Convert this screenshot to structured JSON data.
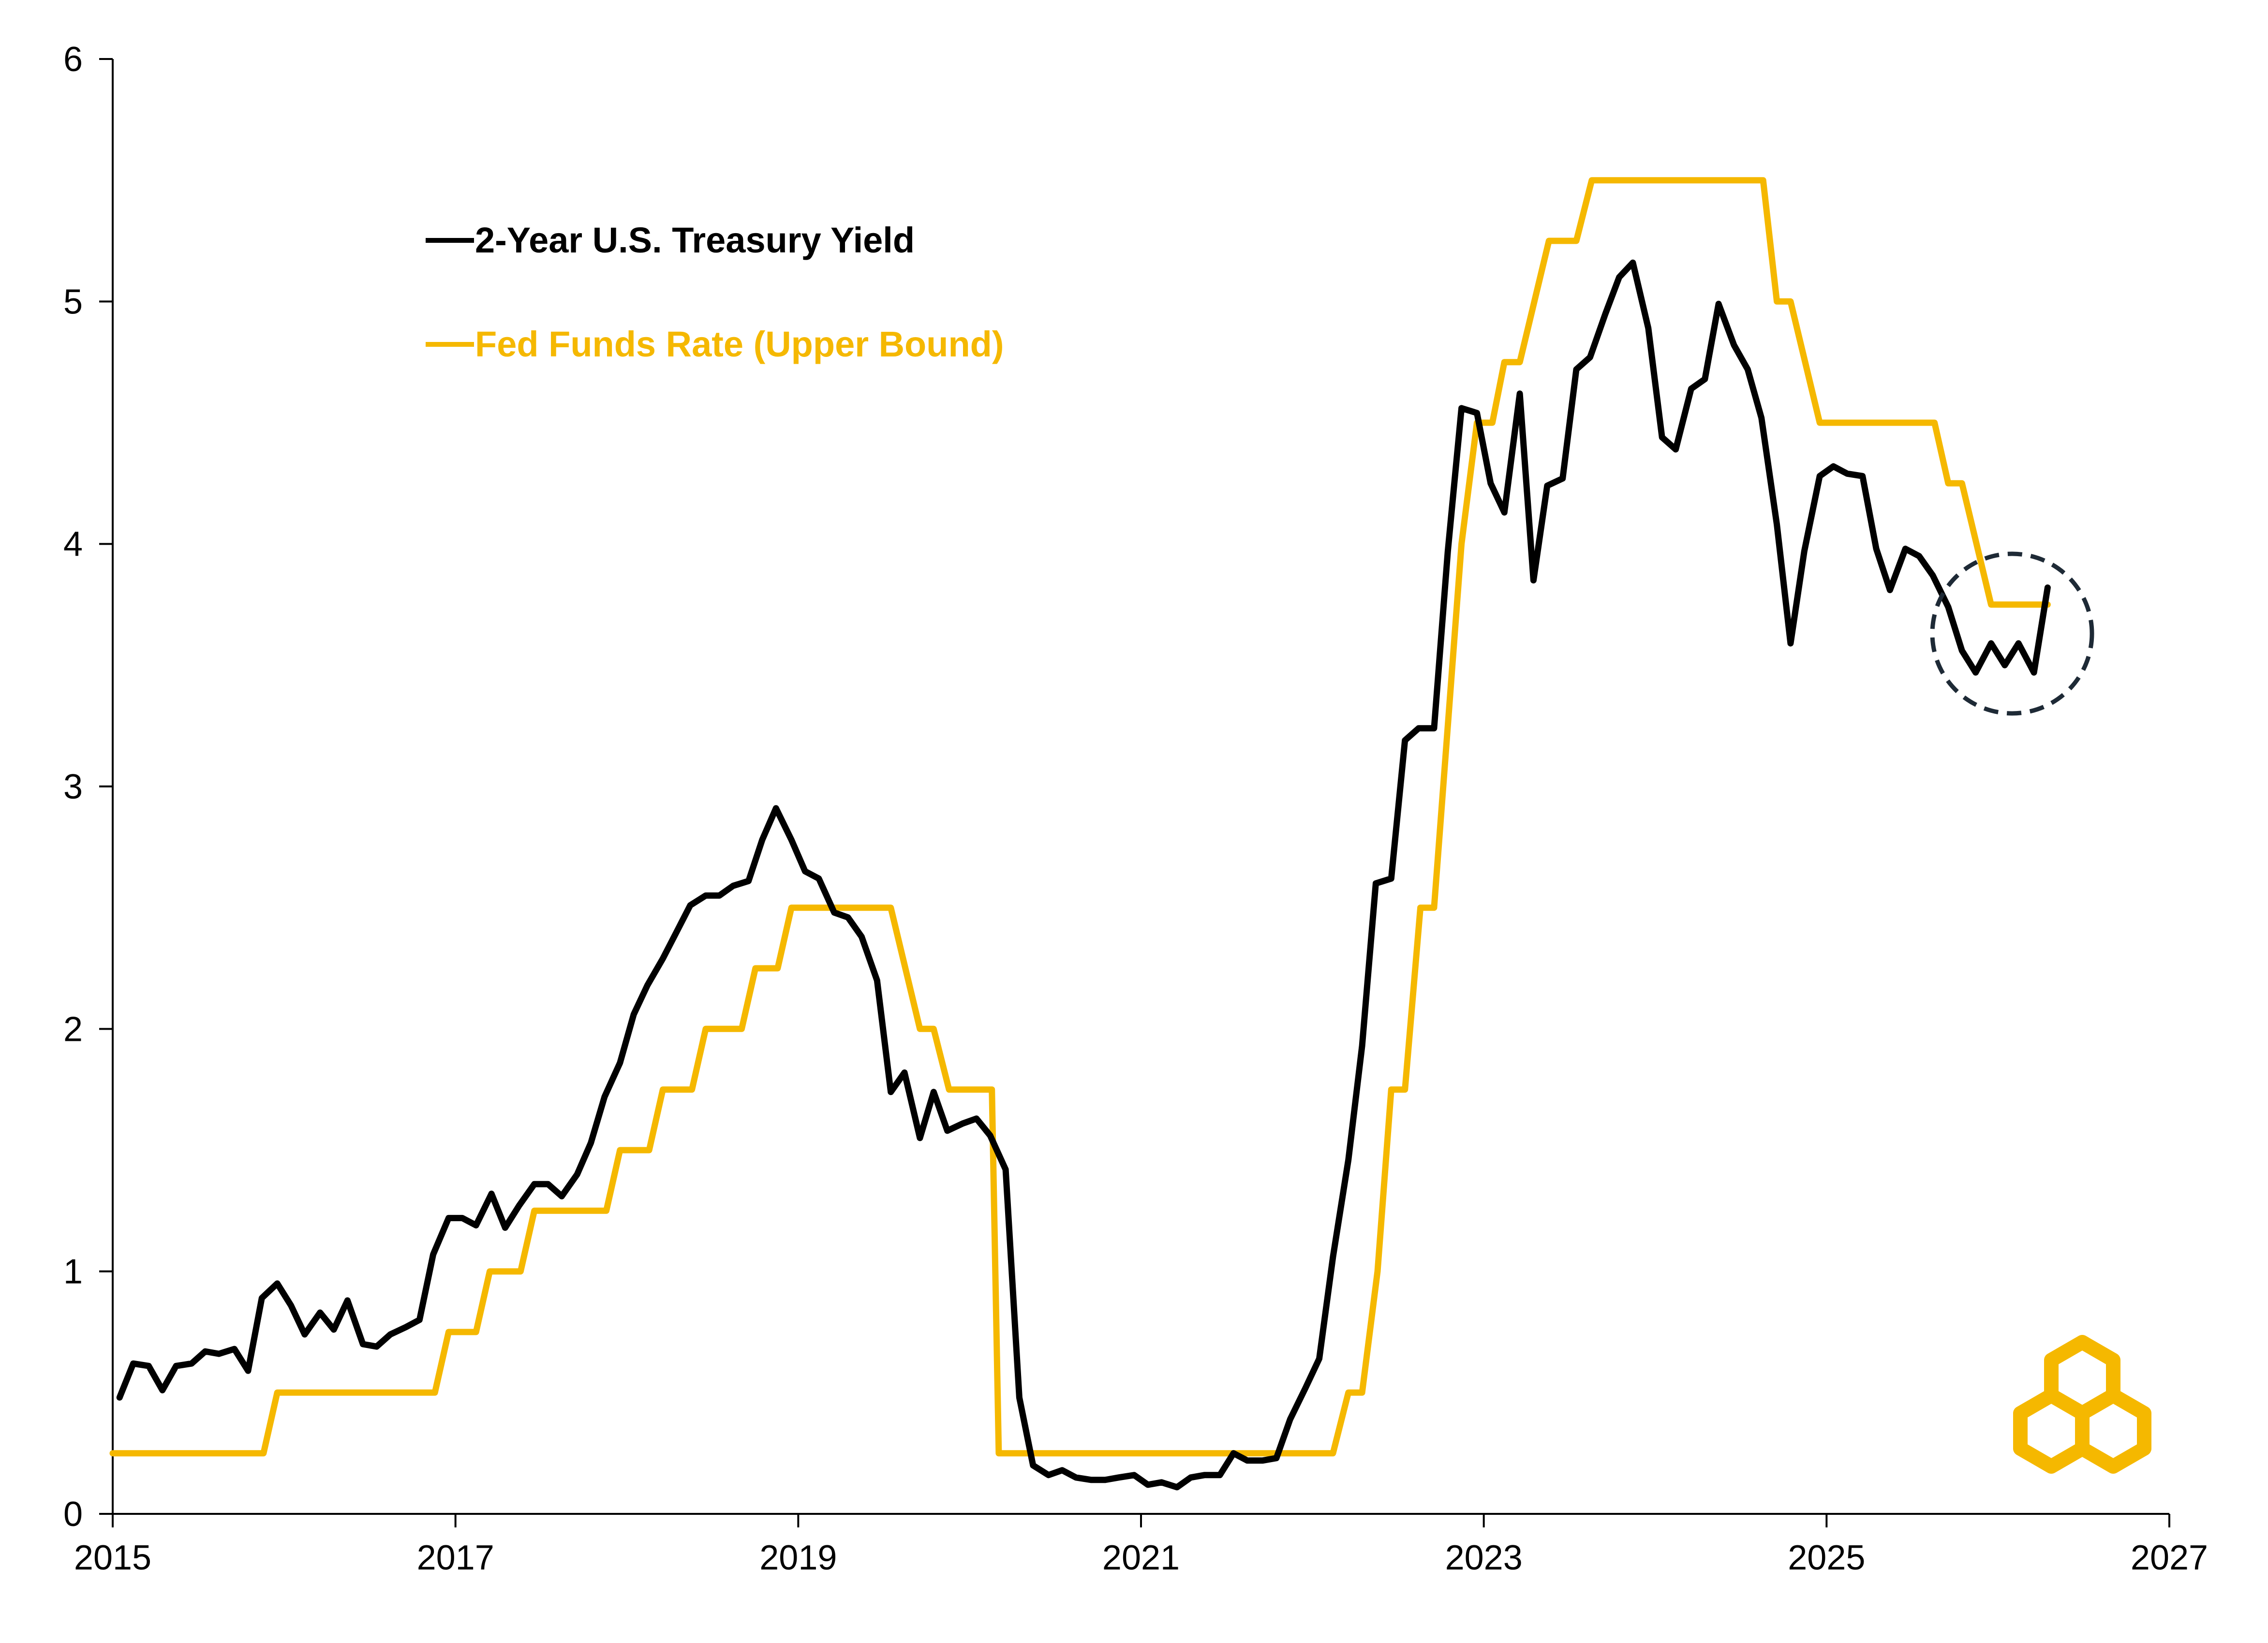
{
  "colors": {
    "treasury": "#000000",
    "fed": "#F5B800",
    "axis": "#000000",
    "highlight_circle": "#1E2A36",
    "logo": "#F5B800"
  },
  "legend": {
    "treasury_label": "2-Year U.S. Treasury Yield",
    "fed_label": "Fed Funds Rate (Upper Bound)"
  },
  "logo": {
    "icon": "interlocking-hexagons-logo-icon"
  },
  "chart_data": {
    "type": "line",
    "title": "",
    "xlabel": "",
    "ylabel": "",
    "xlim": [
      2015,
      2027
    ],
    "ylim": [
      0,
      6
    ],
    "x_ticks": [
      2015,
      2017,
      2019,
      2021,
      2023,
      2025,
      2027
    ],
    "y_ticks": [
      0,
      1,
      2,
      3,
      4,
      5,
      6
    ],
    "x_tick_labels": [
      "2015",
      "2017",
      "2019",
      "2021",
      "2023",
      "2025",
      "2027"
    ],
    "y_tick_labels": [
      "0",
      "1",
      "2",
      "3",
      "4",
      "5",
      "6"
    ],
    "grid": false,
    "legend_position": "top-left",
    "annotations": [
      {
        "type": "dashed-circle",
        "center": [
          2025.05,
          3.63
        ],
        "note": "highlights latest readings"
      }
    ],
    "series": [
      {
        "name": "2-Year U.S. Treasury Yield",
        "color": "#000000",
        "points": [
          [
            2015.04,
            0.48
          ],
          [
            2015.12,
            0.62
          ],
          [
            2015.21,
            0.61
          ],
          [
            2015.29,
            0.51
          ],
          [
            2015.37,
            0.61
          ],
          [
            2015.46,
            0.62
          ],
          [
            2015.54,
            0.67
          ],
          [
            2015.62,
            0.66
          ],
          [
            2015.71,
            0.68
          ],
          [
            2015.79,
            0.59
          ],
          [
            2015.87,
            0.89
          ],
          [
            2015.96,
            0.95
          ],
          [
            2016.04,
            0.86
          ],
          [
            2016.12,
            0.74
          ],
          [
            2016.21,
            0.83
          ],
          [
            2016.29,
            0.76
          ],
          [
            2016.37,
            0.88
          ],
          [
            2016.46,
            0.7
          ],
          [
            2016.54,
            0.69
          ],
          [
            2016.62,
            0.74
          ],
          [
            2016.71,
            0.77
          ],
          [
            2016.79,
            0.8
          ],
          [
            2016.87,
            1.07
          ],
          [
            2016.96,
            1.22
          ],
          [
            2017.04,
            1.22
          ],
          [
            2017.12,
            1.19
          ],
          [
            2017.21,
            1.32
          ],
          [
            2017.29,
            1.18
          ],
          [
            2017.37,
            1.27
          ],
          [
            2017.46,
            1.36
          ],
          [
            2017.54,
            1.36
          ],
          [
            2017.62,
            1.31
          ],
          [
            2017.71,
            1.4
          ],
          [
            2017.79,
            1.53
          ],
          [
            2017.87,
            1.72
          ],
          [
            2017.96,
            1.86
          ],
          [
            2018.04,
            2.06
          ],
          [
            2018.12,
            2.18
          ],
          [
            2018.21,
            2.29
          ],
          [
            2018.29,
            2.4
          ],
          [
            2018.37,
            2.51
          ],
          [
            2018.46,
            2.55
          ],
          [
            2018.54,
            2.55
          ],
          [
            2018.62,
            2.59
          ],
          [
            2018.71,
            2.61
          ],
          [
            2018.79,
            2.78
          ],
          [
            2018.87,
            2.91
          ],
          [
            2018.96,
            2.78
          ],
          [
            2019.04,
            2.65
          ],
          [
            2019.12,
            2.62
          ],
          [
            2019.21,
            2.48
          ],
          [
            2019.29,
            2.46
          ],
          [
            2019.37,
            2.38
          ],
          [
            2019.46,
            2.2
          ],
          [
            2019.54,
            1.74
          ],
          [
            2019.62,
            1.82
          ],
          [
            2019.71,
            1.55
          ],
          [
            2019.79,
            1.74
          ],
          [
            2019.87,
            1.58
          ],
          [
            2019.96,
            1.61
          ],
          [
            2020.04,
            1.63
          ],
          [
            2020.12,
            1.56
          ],
          [
            2020.21,
            1.42
          ],
          [
            2020.29,
            0.48
          ],
          [
            2020.37,
            0.2
          ],
          [
            2020.46,
            0.16
          ],
          [
            2020.54,
            0.18
          ],
          [
            2020.62,
            0.15
          ],
          [
            2020.71,
            0.14
          ],
          [
            2020.79,
            0.14
          ],
          [
            2020.87,
            0.15
          ],
          [
            2020.96,
            0.16
          ],
          [
            2021.04,
            0.12
          ],
          [
            2021.12,
            0.13
          ],
          [
            2021.21,
            0.11
          ],
          [
            2021.29,
            0.15
          ],
          [
            2021.37,
            0.16
          ],
          [
            2021.46,
            0.16
          ],
          [
            2021.54,
            0.25
          ],
          [
            2021.62,
            0.22
          ],
          [
            2021.71,
            0.22
          ],
          [
            2021.79,
            0.23
          ],
          [
            2021.87,
            0.39
          ],
          [
            2021.96,
            0.52
          ],
          [
            2022.04,
            0.64
          ],
          [
            2022.12,
            1.06
          ],
          [
            2022.21,
            1.46
          ],
          [
            2022.29,
            1.93
          ],
          [
            2022.37,
            2.6
          ],
          [
            2022.46,
            2.62
          ],
          [
            2022.54,
            3.19
          ],
          [
            2022.62,
            3.24
          ],
          [
            2022.71,
            3.24
          ],
          [
            2022.79,
            3.97
          ],
          [
            2022.87,
            4.56
          ],
          [
            2022.96,
            4.54
          ],
          [
            2023.04,
            4.25
          ],
          [
            2023.12,
            4.13
          ],
          [
            2023.21,
            4.62
          ],
          [
            2023.29,
            3.85
          ],
          [
            2023.37,
            4.24
          ],
          [
            2023.46,
            4.27
          ],
          [
            2023.54,
            4.72
          ],
          [
            2023.62,
            4.77
          ],
          [
            2023.71,
            4.95
          ],
          [
            2023.79,
            5.1
          ],
          [
            2023.87,
            5.16
          ],
          [
            2023.96,
            4.89
          ],
          [
            2024.04,
            4.44
          ],
          [
            2024.12,
            4.39
          ],
          [
            2024.21,
            4.64
          ],
          [
            2024.29,
            4.68
          ],
          [
            2024.37,
            4.99
          ],
          [
            2024.46,
            4.82
          ],
          [
            2024.54,
            4.72
          ],
          [
            2024.62,
            4.52
          ],
          [
            2024.71,
            4.08
          ],
          [
            2024.79,
            3.59
          ],
          [
            2024.87,
            3.97
          ],
          [
            2024.96,
            4.28
          ],
          [
            2025.04,
            4.32
          ],
          [
            2025.12,
            4.29
          ],
          [
            2025.21,
            4.28
          ],
          [
            2025.29,
            3.98
          ],
          [
            2025.37,
            3.81
          ],
          [
            2025.46,
            3.98
          ],
          [
            2025.54,
            3.95
          ],
          [
            2025.62,
            3.87
          ],
          [
            2025.71,
            3.74
          ],
          [
            2025.79,
            3.56
          ],
          [
            2025.87,
            3.47
          ],
          [
            2025.96,
            3.59
          ],
          [
            2026.04,
            3.5
          ],
          [
            2026.12,
            3.59
          ],
          [
            2026.21,
            3.47
          ],
          [
            2026.29,
            3.82
          ]
        ]
      },
      {
        "name": "Fed Funds Rate (Upper Bound)",
        "color": "#F5B800",
        "points": [
          [
            2015.0,
            0.25
          ],
          [
            2015.88,
            0.25
          ],
          [
            2015.96,
            0.5
          ],
          [
            2016.88,
            0.5
          ],
          [
            2016.96,
            0.75
          ],
          [
            2017.12,
            0.75
          ],
          [
            2017.2,
            1.0
          ],
          [
            2017.38,
            1.0
          ],
          [
            2017.46,
            1.25
          ],
          [
            2017.88,
            1.25
          ],
          [
            2017.96,
            1.5
          ],
          [
            2018.13,
            1.5
          ],
          [
            2018.21,
            1.75
          ],
          [
            2018.38,
            1.75
          ],
          [
            2018.46,
            2.0
          ],
          [
            2018.67,
            2.0
          ],
          [
            2018.75,
            2.25
          ],
          [
            2018.88,
            2.25
          ],
          [
            2018.96,
            2.5
          ],
          [
            2019.54,
            2.5
          ],
          [
            2019.71,
            2.0
          ],
          [
            2019.79,
            2.0
          ],
          [
            2019.88,
            1.75
          ],
          [
            2020.13,
            1.75
          ],
          [
            2020.17,
            0.25
          ],
          [
            2022.12,
            0.25
          ],
          [
            2022.21,
            0.5
          ],
          [
            2022.29,
            0.5
          ],
          [
            2022.38,
            1.0
          ],
          [
            2022.46,
            1.75
          ],
          [
            2022.54,
            1.75
          ],
          [
            2022.63,
            2.5
          ],
          [
            2022.71,
            2.5
          ],
          [
            2022.79,
            3.25
          ],
          [
            2022.87,
            4.0
          ],
          [
            2022.96,
            4.5
          ],
          [
            2023.05,
            4.5
          ],
          [
            2023.12,
            4.75
          ],
          [
            2023.21,
            4.75
          ],
          [
            2023.38,
            5.25
          ],
          [
            2023.54,
            5.25
          ],
          [
            2023.63,
            5.5
          ],
          [
            2024.63,
            5.5
          ],
          [
            2024.71,
            5.0
          ],
          [
            2024.79,
            5.0
          ],
          [
            2024.96,
            4.5
          ],
          [
            2025.63,
            4.5
          ],
          [
            2025.71,
            4.25
          ],
          [
            2025.79,
            4.25
          ],
          [
            2025.96,
            3.75
          ],
          [
            2026.29,
            3.75
          ]
        ]
      }
    ]
  }
}
